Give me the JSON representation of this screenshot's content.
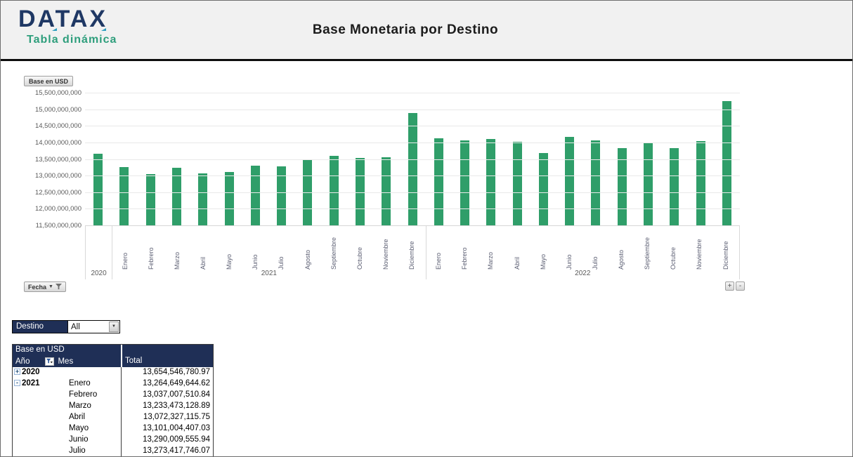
{
  "header": {
    "logo_text": "DATAX",
    "logo_subtitle": "Tabla dinámica",
    "title": "Base Monetaria por Destino"
  },
  "chart": {
    "value_field_button": "Base en USD",
    "axis_field_button": "Fecha",
    "expand_button_label": "+",
    "collapse_button_label": "-"
  },
  "chart_data": {
    "type": "bar",
    "title": "Base Monetaria por Destino",
    "value_field": "Base en USD",
    "bar_color": "#2f9e69",
    "grid": true,
    "ylim": [
      11500000000,
      15500000000
    ],
    "ytick_step": 500000000,
    "ytick_labels": [
      "15,500,000,000",
      "15,000,000,000",
      "14,500,000,000",
      "14,000,000,000",
      "13,500,000,000",
      "13,000,000,000",
      "12,500,000,000",
      "12,000,000,000",
      "11,500,000,000"
    ],
    "groups": [
      {
        "year": "2020",
        "months": [
          ""
        ],
        "values": [
          13654546780.97
        ]
      },
      {
        "year": "2021",
        "months": [
          "Enero",
          "Febrero",
          "Marzo",
          "Abril",
          "Mayo",
          "Junio",
          "Julio",
          "Agosto",
          "Septiembre",
          "Octubre",
          "Noviembre",
          "Diciembre"
        ],
        "values": [
          13264649644.62,
          13037007510.84,
          13233473128.89,
          13072327115.75,
          13101004407.03,
          13290009555.94,
          13273417746.07,
          13490000000,
          13590000000,
          13540000000,
          13560000000,
          14880000000
        ]
      },
      {
        "year": "2022",
        "months": [
          "Enero",
          "Febrero",
          "Marzo",
          "Abril",
          "Mayo",
          "Junio",
          "Julio",
          "Agosto",
          "Septiembre",
          "Octubre",
          "Noviembre",
          "Diciembre"
        ],
        "values": [
          14120000000,
          14060000000,
          14110000000,
          14030000000,
          13690000000,
          14170000000,
          14060000000,
          13830000000,
          13990000000,
          13830000000,
          14050000000,
          15250000000
        ]
      }
    ]
  },
  "filter": {
    "label": "Destino",
    "value": "All"
  },
  "pivot_table": {
    "title": "Base en USD",
    "headers": {
      "year": "Año",
      "month": "Mes",
      "total": "Total"
    },
    "rows": [
      {
        "expand": "+",
        "year": "2020",
        "month": "",
        "total": "13,654,546,780.97"
      },
      {
        "expand": "-",
        "year": "2021",
        "month": "Enero",
        "total": "13,264,649,644.62"
      },
      {
        "expand": "",
        "year": "",
        "month": "Febrero",
        "total": "13,037,007,510.84"
      },
      {
        "expand": "",
        "year": "",
        "month": "Marzo",
        "total": "13,233,473,128.89"
      },
      {
        "expand": "",
        "year": "",
        "month": "Abril",
        "total": "13,072,327,115.75"
      },
      {
        "expand": "",
        "year": "",
        "month": "Mayo",
        "total": "13,101,004,407.03"
      },
      {
        "expand": "",
        "year": "",
        "month": "Junio",
        "total": "13,290,009,555.94"
      },
      {
        "expand": "",
        "year": "",
        "month": "Julio",
        "total": "13,273,417,746.07"
      }
    ]
  },
  "colors": {
    "bar_green": "#2f9e69",
    "navy": "#1f2f56",
    "logo_navy": "#1f3864",
    "teal": "#2e9e7c",
    "header_bg": "#f1f1f1"
  }
}
